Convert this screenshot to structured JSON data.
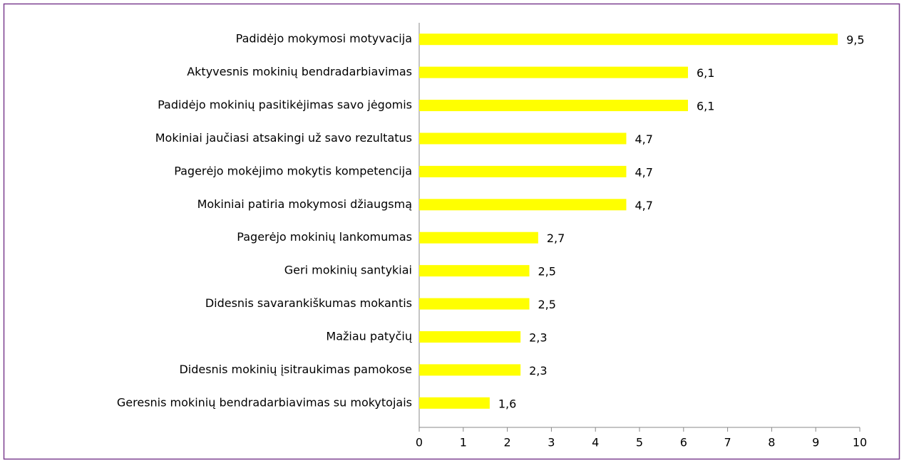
{
  "chart_data": {
    "type": "bar",
    "orientation": "horizontal",
    "categories": [
      "Padidėjo mokymosi motyvacija",
      "Aktyvesnis mokinių bendradarbiavimas",
      "Padidėjo mokinių pasitikėjimas savo jėgomis",
      "Mokiniai jaučiasi atsakingi už savo rezultatus",
      "Pagerėjo mokėjimo mokytis kompetencija",
      "Mokiniai patiria mokymosi džiaugsmą",
      "Pagerėjo mokinių lankomumas",
      "Geri mokinių santykiai",
      "Didesnis savarankiškumas mokantis",
      "Mažiau patyčių",
      "Didesnis mokinių įsitraukimas pamokose",
      "Geresnis mokinių bendradarbiavimas su mokytojais"
    ],
    "values": [
      9.5,
      6.1,
      6.1,
      4.7,
      4.7,
      4.7,
      2.7,
      2.5,
      2.5,
      2.3,
      2.3,
      1.6
    ],
    "value_labels": [
      "9,5",
      "6,1",
      "6,1",
      "4,7",
      "4,7",
      "4,7",
      "2,7",
      "2,5",
      "2,5",
      "2,3",
      "2,3",
      "1,6"
    ],
    "color": "#ffff00",
    "xlim": [
      0,
      10
    ],
    "xticks": [
      0,
      1,
      2,
      3,
      4,
      5,
      6,
      7,
      8,
      9,
      10
    ]
  }
}
